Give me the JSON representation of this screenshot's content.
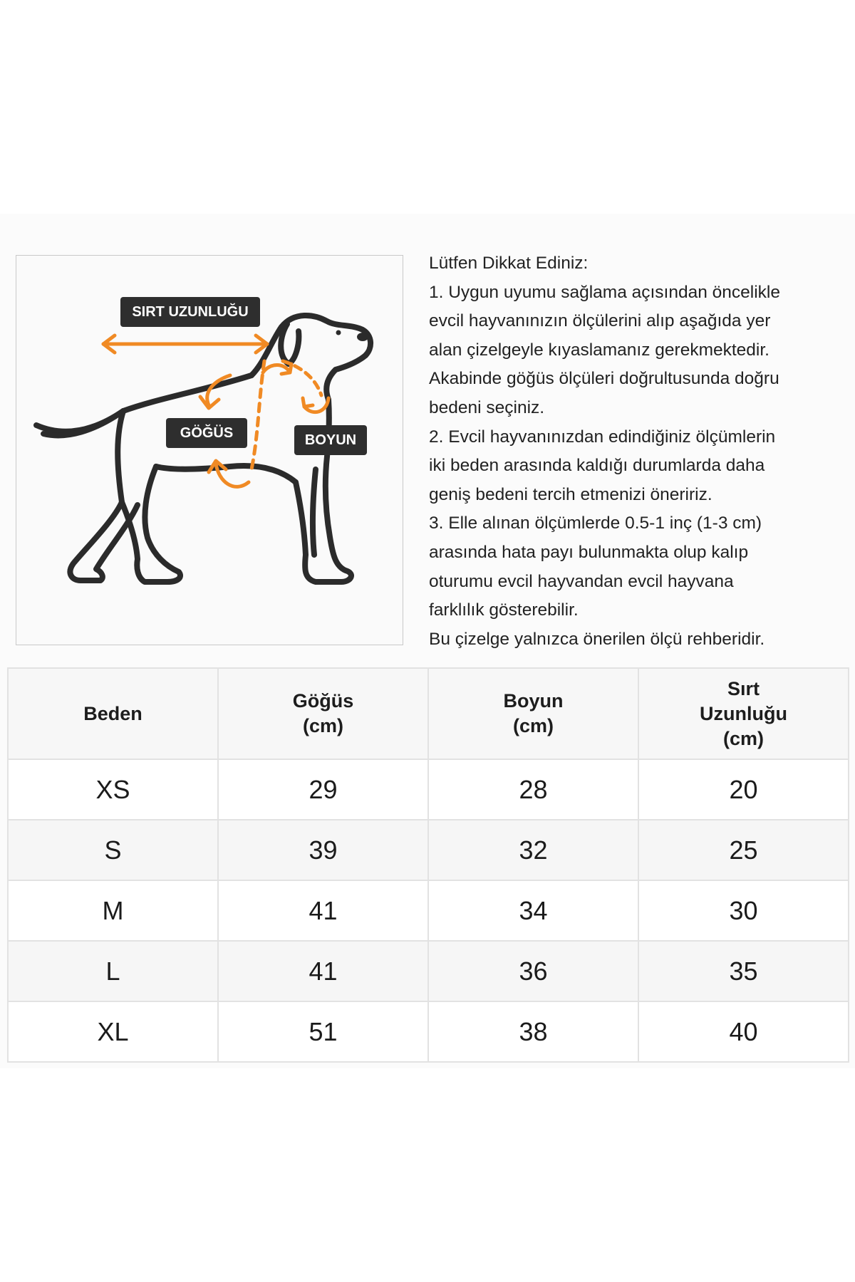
{
  "diagram": {
    "labels": {
      "back_length": "SIRT UZUNLUĞU",
      "chest": "GÖĞÜS",
      "neck": "BOYUN"
    },
    "colors": {
      "outline": "#2b2b2b",
      "accent": "#f08a24",
      "tag_bg": "#2e2e2e"
    }
  },
  "notes": {
    "lines": [
      "Lütfen Dikkat Ediniz:",
      "1. Uygun uyumu sağlama açısından öncelikle",
      "evcil hayvanınızın ölçülerini alıp aşağıda yer",
      "alan çizelgeyle kıyaslamanız gerekmektedir.",
      "Akabinde göğüs ölçüleri doğrultusunda doğru",
      "bedeni seçiniz.",
      "2. Evcil hayvanınızdan edindiğiniz ölçümlerin",
      "iki beden arasında kaldığı durumlarda daha",
      "geniş bedeni tercih etmenizi öneririz.",
      "3. Elle alınan ölçümlerde 0.5-1 inç (1-3 cm)",
      "arasında hata payı bulunmakta olup kalıp",
      "oturumu evcil hayvandan evcil hayvana",
      "farklılık gösterebilir.",
      "Bu çizelge yalnızca önerilen ölçü rehberidir."
    ]
  },
  "table": {
    "headers": [
      [
        "Beden"
      ],
      [
        "Göğüs",
        "(cm)"
      ],
      [
        "Boyun",
        "(cm)"
      ],
      [
        "Sırt",
        "Uzunluğu",
        "(cm)"
      ]
    ],
    "rows": [
      [
        "XS",
        "29",
        "28",
        "20"
      ],
      [
        "S",
        "39",
        "32",
        "25"
      ],
      [
        "M",
        "41",
        "34",
        "30"
      ],
      [
        "L",
        "41",
        "36",
        "35"
      ],
      [
        "XL",
        "51",
        "38",
        "40"
      ]
    ]
  }
}
